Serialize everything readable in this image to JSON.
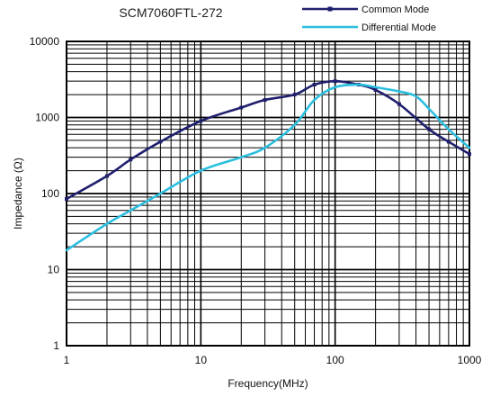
{
  "chart_data": {
    "type": "line",
    "title": "SCM7060FTL-272",
    "xlabel": "Frequency(MHz)",
    "ylabel": "Impedance (Ω)",
    "xscale": "log",
    "yscale": "log",
    "xlim": [
      1,
      1000
    ],
    "ylim": [
      1,
      10000
    ],
    "xticks": [
      "1",
      "10",
      "100",
      "1000"
    ],
    "yticks": [
      "1",
      "10",
      "100",
      "1000",
      "10000"
    ],
    "grid": true,
    "legend": "top-right",
    "series": [
      {
        "name": "Common Mode",
        "color": "#1f1f6e",
        "marker": true,
        "x": [
          1,
          2,
          3,
          5,
          10,
          20,
          30,
          50,
          70,
          100,
          150,
          200,
          300,
          500,
          700,
          1000
        ],
        "y": [
          85,
          170,
          280,
          480,
          900,
          1350,
          1700,
          2000,
          2700,
          3000,
          2700,
          2300,
          1500,
          700,
          480,
          330
        ]
      },
      {
        "name": "Differential Mode",
        "color": "#2bbfe0",
        "marker": false,
        "x": [
          1,
          2,
          3,
          5,
          10,
          20,
          30,
          50,
          70,
          100,
          150,
          200,
          300,
          400,
          500,
          700,
          1000
        ],
        "y": [
          18,
          40,
          60,
          100,
          200,
          300,
          400,
          800,
          1700,
          2500,
          2700,
          2500,
          2200,
          1900,
          1300,
          700,
          400
        ]
      }
    ]
  }
}
